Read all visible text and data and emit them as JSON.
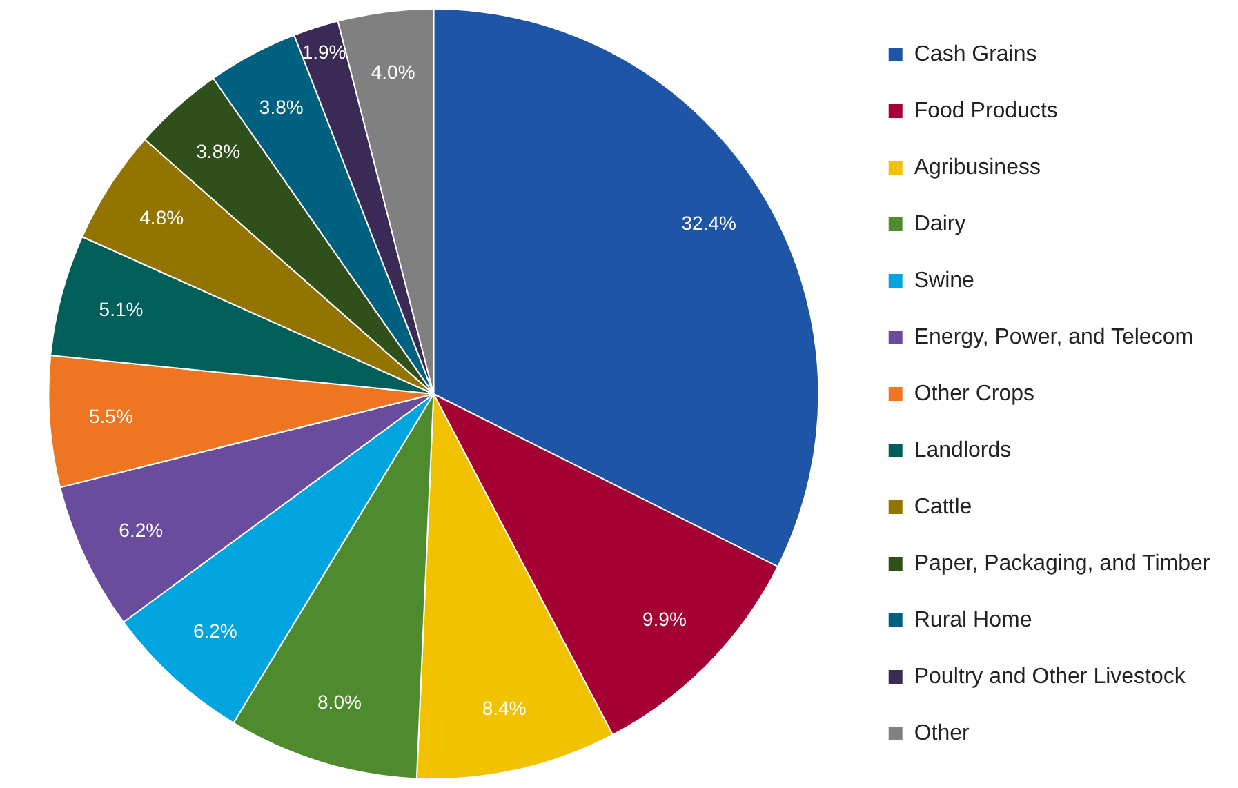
{
  "chart_data": {
    "type": "pie",
    "categories": [
      "Cash Grains",
      "Food Products",
      "Agribusiness",
      "Dairy",
      "Swine",
      "Energy, Power, and Telecom",
      "Other Crops",
      "Landlords",
      "Cattle",
      "Paper, Packaging, and Timber",
      "Rural Home",
      "Poultry and Other Livestock",
      "Other"
    ],
    "values": [
      32.4,
      9.9,
      8.4,
      8.0,
      6.2,
      6.2,
      5.5,
      5.1,
      4.8,
      3.8,
      3.8,
      1.9,
      4.0
    ],
    "value_labels": [
      "32.4%",
      "9.9%",
      "8.4%",
      "8.0%",
      "6.2%",
      "6.2%",
      "5.5%",
      "5.1%",
      "4.8%",
      "3.8%",
      "3.8%",
      "1.9%",
      "4.0%"
    ],
    "colors": [
      "#1f55a6",
      "#a50034",
      "#f2c100",
      "#4e8a2e",
      "#00a5df",
      "#6a4c9c",
      "#ee7623",
      "#005f5a",
      "#937400",
      "#2f4f1b",
      "#00607f",
      "#3b2a56",
      "#808080"
    ],
    "legend": "right"
  }
}
